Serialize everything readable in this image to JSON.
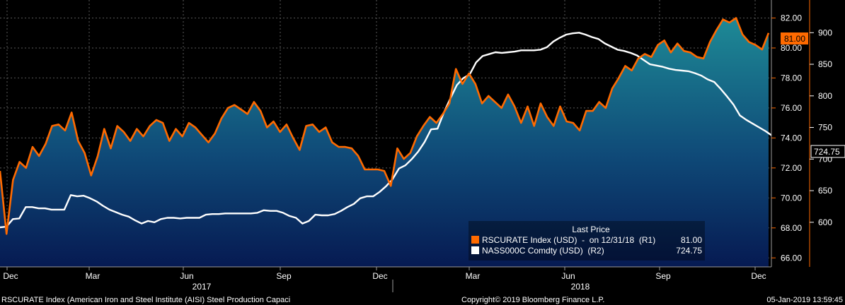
{
  "chart_data": {
    "type": "line",
    "title": "",
    "xlabel": "",
    "ylabel": "",
    "x_tick_labels": [
      "Dec",
      "Mar",
      "Jun",
      "Sep",
      "Dec",
      "Mar",
      "Jun",
      "Sep",
      "Dec"
    ],
    "year_labels": [
      "2017",
      "2018"
    ],
    "y_left": {
      "label": "R1",
      "range": [
        65.4,
        83.2
      ],
      "ticks": [
        "66.00",
        "68.00",
        "70.00",
        "72.00",
        "74.00",
        "76.00",
        "78.00",
        "80.00",
        "82.00"
      ]
    },
    "y_right": {
      "label": "R2",
      "range": [
        529.4,
        951.7
      ],
      "ticks": [
        "600",
        "650",
        "700",
        "750",
        "800",
        "850",
        "900"
      ]
    },
    "series": [
      {
        "name": "RSCURATE Index (USD)",
        "axis": "R1",
        "color": "#ff6a00",
        "fill_top": "#1e8a96",
        "fill_bottom": "#061a52",
        "values": [
          71.8,
          67.6,
          71.2,
          72.4,
          72.0,
          73.4,
          72.8,
          73.6,
          74.8,
          74.9,
          74.5,
          75.7,
          73.8,
          73.0,
          71.5,
          72.8,
          74.6,
          73.3,
          74.8,
          74.4,
          73.8,
          74.6,
          74.1,
          74.8,
          75.2,
          75.0,
          73.8,
          74.6,
          74.1,
          75.0,
          74.7,
          74.2,
          73.7,
          74.3,
          75.3,
          76.0,
          76.2,
          75.9,
          75.6,
          76.4,
          75.8,
          74.7,
          75.1,
          74.4,
          74.9,
          74.0,
          73.2,
          74.8,
          74.9,
          74.4,
          74.7,
          73.7,
          73.4,
          73.4,
          73.3,
          72.8,
          71.9,
          71.9,
          71.9,
          71.8,
          70.8,
          73.3,
          72.6,
          73.0,
          74.1,
          74.8,
          75.4,
          75.0,
          75.6,
          76.3,
          78.6,
          77.6,
          78.3,
          77.6,
          76.3,
          76.8,
          76.4,
          76.0,
          76.9,
          76.1,
          75.0,
          76.1,
          74.8,
          76.3,
          75.4,
          74.8,
          76.1,
          75.1,
          75.0,
          74.5,
          75.8,
          75.8,
          76.4,
          76.0,
          77.3,
          78.0,
          78.8,
          78.5,
          79.3,
          79.6,
          79.4,
          80.2,
          80.5,
          79.7,
          80.3,
          79.8,
          79.7,
          79.4,
          79.3,
          80.4,
          81.2,
          81.9,
          81.7,
          82.0,
          80.9,
          80.4,
          80.2,
          79.9,
          81.0
        ]
      },
      {
        "name": "NASS000C Comdty (USD)",
        "axis": "R2",
        "color": "#ffffff",
        "values": [
          592,
          593,
          605,
          606,
          624,
          624,
          622,
          622,
          620,
          620,
          620,
          643,
          641,
          642,
          638,
          633,
          626,
          620,
          616,
          612,
          609,
          603,
          598,
          602,
          600,
          605,
          607,
          607,
          606,
          607,
          607,
          607,
          612,
          613,
          613,
          614,
          614,
          614,
          614,
          614,
          615,
          619,
          618,
          618,
          615,
          610,
          607,
          598,
          602,
          612,
          611,
          611,
          613,
          618,
          624,
          629,
          638,
          641,
          641,
          648,
          657,
          668,
          685,
          690,
          700,
          712,
          727,
          747,
          748,
          774,
          796,
          817,
          828,
          834,
          853,
          863,
          866,
          869,
          868,
          869,
          870,
          872,
          872,
          872,
          873,
          877,
          886,
          892,
          897,
          899,
          900,
          897,
          893,
          890,
          883,
          878,
          873,
          871,
          868,
          864,
          857,
          850,
          848,
          846,
          843,
          841,
          840,
          839,
          836,
          832,
          826,
          822,
          811,
          799,
          786,
          769,
          762,
          756,
          750,
          744,
          737
        ]
      }
    ],
    "legend": {
      "title": "Last Price",
      "placement": "bottom-center",
      "entries": [
        {
          "name": "RSCURATE Index (USD)  -  on 12/31/18  (R1)",
          "value": "81.00"
        },
        {
          "name": "NASS000C Comdty (USD)  (R2)",
          "value": "724.75"
        }
      ]
    },
    "last_value_badges": [
      "81.00",
      "724.75"
    ],
    "footer_left": "RSCURATE Index (American Iron and Steel Institute (AISI) Steel Production Capaci",
    "footer_center": "Copyright© 2019 Bloomberg Finance L.P.",
    "footer_right": "05-Jan-2019 13:59:45",
    "grid": true
  }
}
